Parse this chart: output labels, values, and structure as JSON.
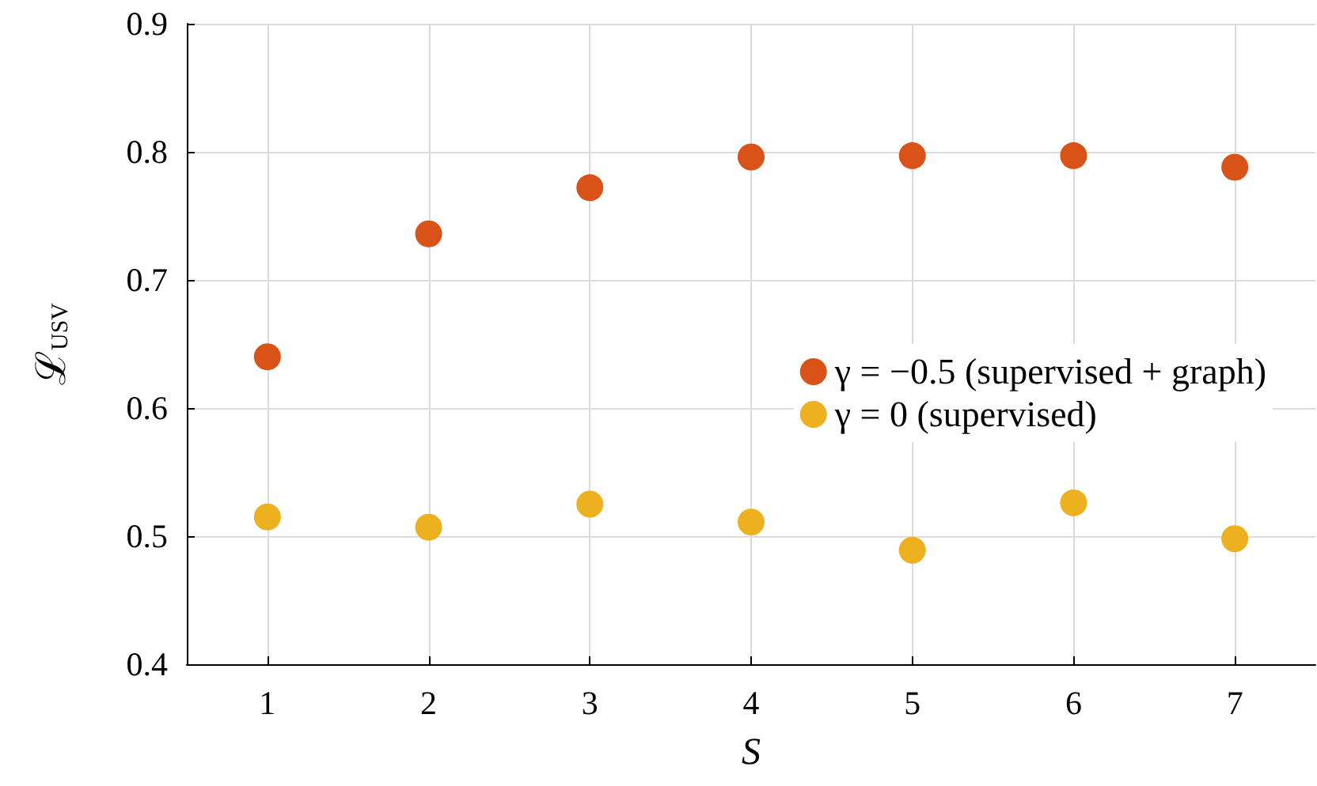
{
  "chart_data": {
    "type": "scatter",
    "xlabel": "S",
    "ylabel": "ℒ$_{USV}$",
    "x": [
      1,
      2,
      3,
      4,
      5,
      6,
      7
    ],
    "series": [
      {
        "name": "γ = −0.5 (supervised + graph)",
        "color": "#d95319",
        "values": [
          0.64,
          0.736,
          0.772,
          0.796,
          0.797,
          0.797,
          0.788
        ]
      },
      {
        "name": "γ = 0 (supervised)",
        "color": "#edb120",
        "values": [
          0.515,
          0.507,
          0.525,
          0.511,
          0.489,
          0.526,
          0.498
        ]
      }
    ],
    "xlim": [
      0.5,
      7.5
    ],
    "xticks": [
      1,
      2,
      3,
      4,
      5,
      6,
      7
    ],
    "ylim": [
      0.4,
      0.9
    ],
    "yticks": [
      0.4,
      0.5,
      0.6,
      0.7,
      0.8,
      0.9
    ],
    "grid": true,
    "legend": "right",
    "marker": "circle"
  }
}
